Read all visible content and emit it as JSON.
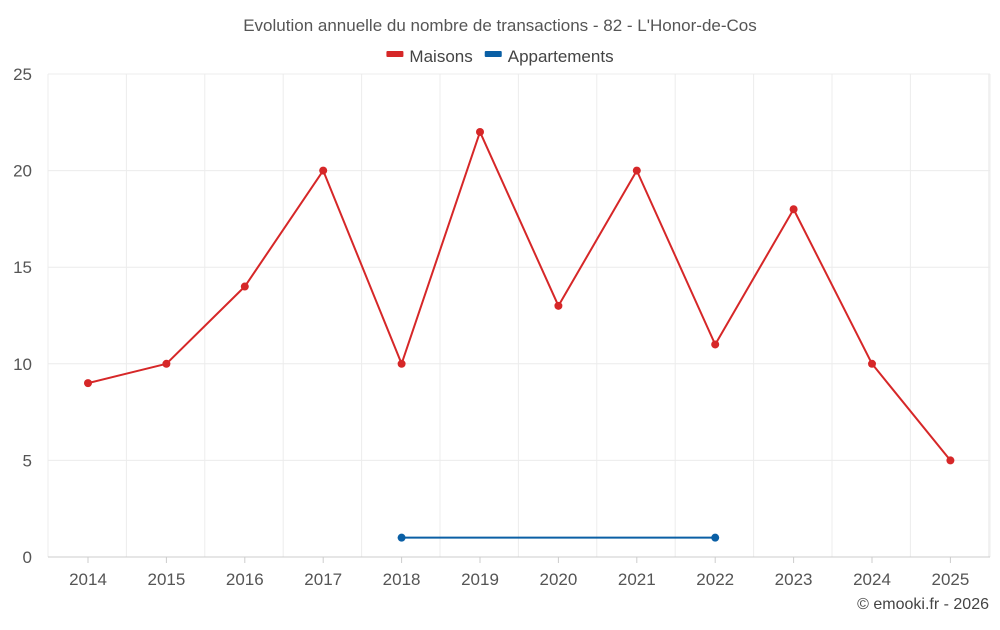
{
  "chart_data": {
    "type": "line",
    "title": "Evolution annuelle du nombre de transactions - 82 - L'Honor-de-Cos",
    "categories": [
      "2014",
      "2015",
      "2016",
      "2017",
      "2018",
      "2019",
      "2020",
      "2021",
      "2022",
      "2023",
      "2024",
      "2025"
    ],
    "series": [
      {
        "name": "Maisons",
        "color": "#d62728",
        "values": [
          9,
          10,
          14,
          20,
          10,
          22,
          13,
          20,
          11,
          18,
          10,
          5
        ]
      },
      {
        "name": "Appartements",
        "color": "#0a5fa5",
        "values": [
          null,
          null,
          null,
          null,
          1,
          null,
          null,
          null,
          1,
          null,
          null,
          null
        ]
      }
    ],
    "ylim": [
      0,
      25
    ],
    "yticks": [
      0,
      5,
      10,
      15,
      20,
      25
    ],
    "xlabel": "",
    "ylabel": "",
    "grid": true,
    "legend": "top-center"
  },
  "credit": "© emooki.fr - 2026"
}
